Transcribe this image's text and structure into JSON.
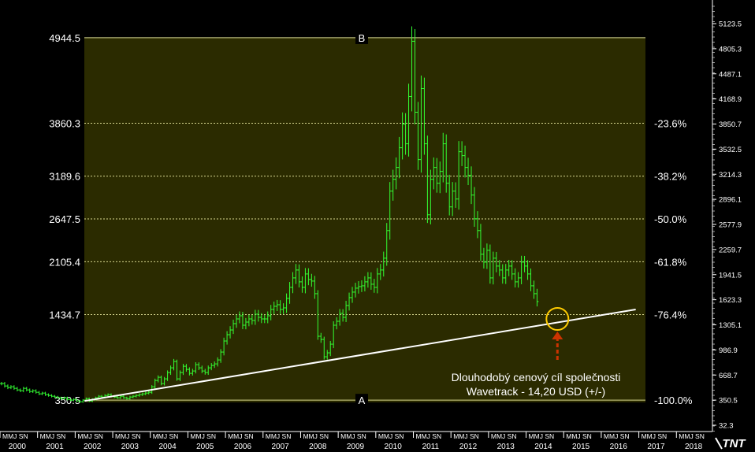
{
  "colors": {
    "background": "#000000",
    "zone": "#2b2b00",
    "fib_line": "#d8d890",
    "price_bar": "#33ff33",
    "trendline": "#ffffff",
    "target_circle": "#ffcc00",
    "arrow": "#cc3300",
    "text": "#ffffff"
  },
  "chart_data": {
    "type": "ohlc-bars",
    "x_unit": "month index from Jan 2000",
    "y_unit": "price",
    "ylim": [
      32.3,
      5123.5
    ],
    "xlim": [
      0,
      227
    ],
    "right_axis_ticks": [
      "5123.5",
      "4805.3",
      "4487.1",
      "4168.9",
      "3850.7",
      "3532.5",
      "3214.3",
      "2896.1",
      "2577.9",
      "2259.7",
      "1941.5",
      "1623.3",
      "1305.1",
      "986.9",
      "668.7",
      "350.5",
      "32.3"
    ],
    "year_labels": [
      "2000",
      "2001",
      "2002",
      "2003",
      "2004",
      "2005",
      "2006",
      "2007",
      "2008",
      "2009",
      "2010",
      "2011",
      "2012",
      "2013",
      "2014",
      "2015",
      "2016",
      "2017",
      "2018"
    ],
    "month_strip": "MMJ SN",
    "fib_levels": [
      {
        "price": 4944.5,
        "left_label": "4944.5",
        "right_label": "",
        "point_label": "B"
      },
      {
        "price": 3860.3,
        "left_label": "3860.3",
        "right_label": "-23.6%"
      },
      {
        "price": 3189.6,
        "left_label": "3189.6",
        "right_label": "-38.2%"
      },
      {
        "price": 2647.5,
        "left_label": "2647.5",
        "right_label": "-50.0%"
      },
      {
        "price": 2105.4,
        "left_label": "2105.4",
        "right_label": "-61.8%"
      },
      {
        "price": 1434.7,
        "left_label": "1434.7",
        "right_label": "-76.4%"
      },
      {
        "price": 350.5,
        "left_label": "350.5",
        "right_label": "-100.0%",
        "point_label": "A"
      }
    ],
    "trendline": {
      "x1": 27,
      "y1": 340,
      "x2": 203,
      "y2": 1500
    },
    "target_point": {
      "x": 178,
      "price": 1380
    },
    "annotation": [
      "Dlouhodobý cenový cíl společnosti",
      "Wavetrack - 14,20 USD (+/-)"
    ],
    "series": [
      {
        "values": [
          560,
          530,
          510,
          520,
          500,
          480,
          470,
          500,
          480,
          460,
          470,
          450,
          430,
          440,
          420,
          410,
          400,
          390,
          380,
          370,
          380,
          360,
          350,
          360,
          340,
          330,
          350,
          370,
          340,
          360,
          380,
          400,
          390,
          410,
          420,
          400,
          390,
          380,
          400,
          380,
          370,
          390,
          400,
          410,
          420,
          430,
          440,
          450,
          520,
          600,
          640,
          560,
          620,
          700,
          760,
          840,
          620,
          700,
          780,
          740,
          690,
          720,
          800,
          760,
          720,
          700,
          760,
          790,
          810,
          860,
          960,
          1100,
          1180,
          1240,
          1320,
          1380,
          1420,
          1300,
          1340,
          1380,
          1360,
          1440,
          1400,
          1380,
          1380,
          1420,
          1500,
          1540,
          1560,
          1500,
          1520,
          1640,
          1780,
          1900,
          2000,
          1850,
          1780,
          1950,
          1880,
          1860,
          1700,
          1160,
          1120,
          900,
          950,
          1060,
          1300,
          1350,
          1450,
          1400,
          1550,
          1650,
          1720,
          1770,
          1790,
          1800,
          1850,
          1900,
          1820,
          1780,
          1950,
          2000,
          2150,
          2500,
          3000,
          3150,
          3300,
          3550,
          3850,
          3600,
          4200,
          4900,
          4000,
          3400,
          4300,
          3600,
          2700,
          3150,
          3300,
          3100,
          3250,
          3600,
          3100,
          2800,
          3000,
          2900,
          3500,
          3450,
          3300,
          3200,
          2950,
          2650,
          2500,
          2200,
          2100,
          2250,
          1900,
          2150,
          2050,
          2000,
          1900,
          2000,
          2050,
          1950,
          1850,
          1900,
          2100,
          2050,
          1950,
          1800,
          1700,
          1600
        ]
      }
    ]
  }
}
